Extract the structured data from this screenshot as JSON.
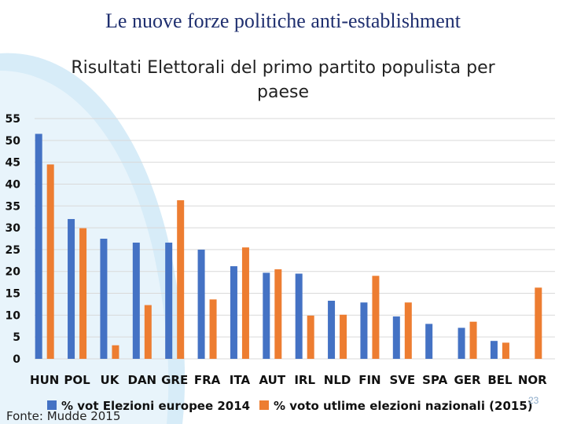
{
  "slide": {
    "title": "Le nuove forze politiche anti-establishment",
    "number": "23",
    "source": "Fonte: Mudde 2015"
  },
  "colors": {
    "series_eu": "#4472c4",
    "series_nat": "#ed7d31",
    "accent_arc": "#cfe6f5"
  },
  "chart_data": {
    "type": "bar",
    "title": "Risultati Elettorali del primo partito populista per paese",
    "title_lines": [
      "Risultati Elettorali del primo partito populista per",
      "paese"
    ],
    "categories": [
      "HUN",
      "POL",
      "UK",
      "DAN",
      "GRE",
      "FRA",
      "ITA",
      "AUT",
      "IRL",
      "NLD",
      "FIN",
      "SVE",
      "SPA",
      "GER",
      "BEL",
      "NOR"
    ],
    "series": [
      {
        "name": "% vot Elezioni europee 2014",
        "values": [
          51.5,
          32,
          27.5,
          26.6,
          26.6,
          25,
          21.2,
          19.7,
          19.5,
          13.3,
          12.9,
          9.7,
          8,
          7.1,
          4.1,
          null
        ]
      },
      {
        "name": "% voto utlime elezioni nazionali (2015)",
        "values": [
          44.5,
          29.9,
          3.1,
          12.3,
          36.3,
          13.6,
          25.5,
          20.5,
          9.9,
          10.1,
          19,
          12.9,
          null,
          8.5,
          3.7,
          16.3
        ]
      }
    ],
    "yticks": [
      0,
      5,
      10,
      15,
      20,
      25,
      30,
      35,
      40,
      45,
      50,
      55
    ],
    "ylim": [
      0,
      55
    ],
    "xlabel": "",
    "ylabel": "",
    "grid": true,
    "legend": "bottom"
  }
}
